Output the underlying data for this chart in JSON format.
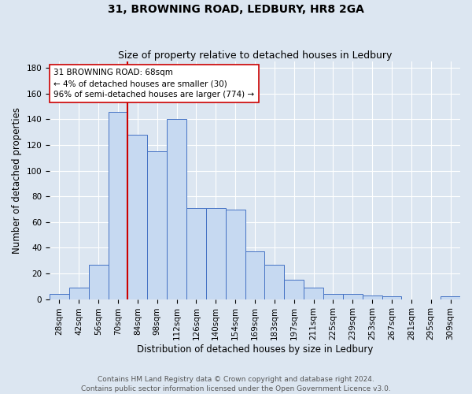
{
  "title": "31, BROWNING ROAD, LEDBURY, HR8 2GA",
  "subtitle": "Size of property relative to detached houses in Ledbury",
  "xlabel": "Distribution of detached houses by size in Ledbury",
  "ylabel": "Number of detached properties",
  "categories": [
    "28sqm",
    "42sqm",
    "56sqm",
    "70sqm",
    "84sqm",
    "98sqm",
    "112sqm",
    "126sqm",
    "140sqm",
    "154sqm",
    "169sqm",
    "183sqm",
    "197sqm",
    "211sqm",
    "225sqm",
    "239sqm",
    "253sqm",
    "267sqm",
    "281sqm",
    "295sqm",
    "309sqm"
  ],
  "values": [
    4,
    9,
    27,
    146,
    128,
    115,
    140,
    71,
    71,
    70,
    37,
    27,
    15,
    9,
    4,
    4,
    3,
    2,
    0,
    0,
    2
  ],
  "bar_color": "#c6d9f1",
  "bar_edge_color": "#4472c4",
  "vline_position": 3.5,
  "vline_color": "#cc0000",
  "annotation_text": "31 BROWNING ROAD: 68sqm\n← 4% of detached houses are smaller (30)\n96% of semi-detached houses are larger (774) →",
  "annotation_box_color": "#ffffff",
  "annotation_box_edge": "#cc0000",
  "ylim": [
    0,
    185
  ],
  "yticks": [
    0,
    20,
    40,
    60,
    80,
    100,
    120,
    140,
    160,
    180
  ],
  "bg_color": "#dce6f1",
  "footer": "Contains HM Land Registry data © Crown copyright and database right 2024.\nContains public sector information licensed under the Open Government Licence v3.0.",
  "title_fontsize": 10,
  "subtitle_fontsize": 9,
  "axis_label_fontsize": 8.5,
  "tick_fontsize": 7.5,
  "footer_fontsize": 6.5
}
